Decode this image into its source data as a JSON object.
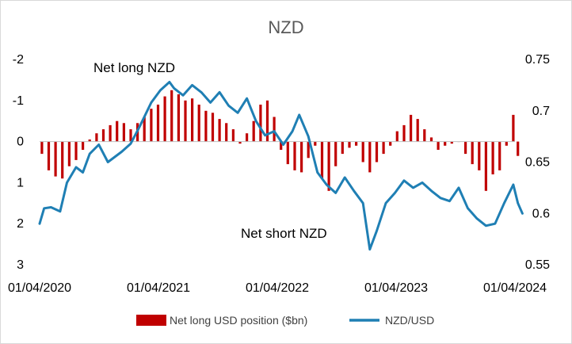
{
  "chart_data": {
    "type": "bar+line",
    "title": "NZD",
    "x_range": [
      "2020-01-04",
      "2024-01-04"
    ],
    "x_ticks": [
      "01/04/2020",
      "01/04/2021",
      "01/04/2022",
      "01/04/2023",
      "01/04/2024"
    ],
    "y_left": {
      "range": [
        3,
        -2
      ],
      "reversed": true,
      "ticks": [
        -2,
        -1,
        0,
        1,
        2,
        3
      ],
      "tick_labels": [
        "-2",
        "-1",
        "0",
        "1",
        "2",
        "3"
      ]
    },
    "y_right": {
      "range": [
        0.55,
        0.75
      ],
      "ticks": [
        0.55,
        0.6,
        0.65,
        0.7,
        0.75
      ],
      "tick_labels": [
        "0.55",
        "0.6",
        "0.65",
        "0.7",
        "0.75"
      ]
    },
    "annotations": [
      {
        "text": "Net long NZD"
      },
      {
        "text": "Net short NZD"
      }
    ],
    "legend_position": "bottom",
    "series": [
      {
        "name": "Net long USD position ($bn)",
        "type": "bar",
        "axis": "left",
        "color": "#c00000",
        "points": [
          [
            "2020-01-11",
            0.3
          ],
          [
            "2020-02-01",
            0.7
          ],
          [
            "2020-02-22",
            0.85
          ],
          [
            "2020-03-14",
            0.9
          ],
          [
            "2020-04-04",
            0.6
          ],
          [
            "2020-04-25",
            0.45
          ],
          [
            "2020-05-16",
            0.2
          ],
          [
            "2020-06-06",
            -0.05
          ],
          [
            "2020-06-27",
            -0.2
          ],
          [
            "2020-07-18",
            -0.3
          ],
          [
            "2020-08-08",
            -0.4
          ],
          [
            "2020-08-29",
            -0.5
          ],
          [
            "2020-09-19",
            -0.45
          ],
          [
            "2020-10-10",
            -0.3
          ],
          [
            "2020-10-31",
            -0.45
          ],
          [
            "2020-11-21",
            -0.6
          ],
          [
            "2020-12-12",
            -0.8
          ],
          [
            "2021-01-02",
            -0.9
          ],
          [
            "2021-01-23",
            -1.1
          ],
          [
            "2021-02-13",
            -1.25
          ],
          [
            "2021-03-06",
            -1.15
          ],
          [
            "2021-03-27",
            -1.0
          ],
          [
            "2021-04-17",
            -1.05
          ],
          [
            "2021-05-08",
            -0.9
          ],
          [
            "2021-05-29",
            -0.75
          ],
          [
            "2021-06-19",
            -0.7
          ],
          [
            "2021-07-10",
            -0.55
          ],
          [
            "2021-07-31",
            -0.45
          ],
          [
            "2021-08-21",
            -0.3
          ],
          [
            "2021-09-11",
            0.05
          ],
          [
            "2021-10-02",
            -0.2
          ],
          [
            "2021-10-23",
            -0.5
          ],
          [
            "2021-11-13",
            -0.9
          ],
          [
            "2021-12-04",
            -1.0
          ],
          [
            "2021-12-25",
            -0.6
          ],
          [
            "2022-01-15",
            0.2
          ],
          [
            "2022-02-05",
            0.55
          ],
          [
            "2022-02-26",
            0.7
          ],
          [
            "2022-03-19",
            0.75
          ],
          [
            "2022-04-09",
            0.4
          ],
          [
            "2022-04-30",
            0.1
          ],
          [
            "2022-05-21",
            0.9
          ],
          [
            "2022-06-11",
            1.2
          ],
          [
            "2022-07-02",
            0.6
          ],
          [
            "2022-07-23",
            0.3
          ],
          [
            "2022-08-13",
            0.15
          ],
          [
            "2022-09-03",
            0.1
          ],
          [
            "2022-09-24",
            0.5
          ],
          [
            "2022-10-15",
            0.75
          ],
          [
            "2022-11-05",
            0.5
          ],
          [
            "2022-11-26",
            0.3
          ],
          [
            "2022-12-17",
            0.1
          ],
          [
            "2023-01-07",
            -0.25
          ],
          [
            "2023-01-28",
            -0.4
          ],
          [
            "2023-02-18",
            -0.65
          ],
          [
            "2023-03-11",
            -0.55
          ],
          [
            "2023-04-01",
            -0.3
          ],
          [
            "2023-04-22",
            -0.1
          ],
          [
            "2023-05-13",
            0.2
          ],
          [
            "2023-06-03",
            0.1
          ],
          [
            "2023-06-24",
            0.05
          ],
          [
            "2023-07-15",
            0.0
          ],
          [
            "2023-08-05",
            0.3
          ],
          [
            "2023-08-26",
            0.55
          ],
          [
            "2023-09-16",
            0.7
          ],
          [
            "2023-10-07",
            1.2
          ],
          [
            "2023-10-28",
            0.8
          ],
          [
            "2023-11-18",
            0.7
          ],
          [
            "2023-12-09",
            0.1
          ],
          [
            "2023-12-30",
            -0.65
          ],
          [
            "2024-01-13",
            0.35
          ]
        ]
      },
      {
        "name": "NZD/USD",
        "type": "line",
        "axis": "right",
        "color": "#1f7fb4",
        "points": [
          [
            "2020-01-04",
            0.59
          ],
          [
            "2020-01-18",
            0.605
          ],
          [
            "2020-02-08",
            0.606
          ],
          [
            "2020-03-07",
            0.602
          ],
          [
            "2020-03-28",
            0.63
          ],
          [
            "2020-04-25",
            0.645
          ],
          [
            "2020-05-16",
            0.64
          ],
          [
            "2020-06-06",
            0.658
          ],
          [
            "2020-07-04",
            0.667
          ],
          [
            "2020-08-01",
            0.65
          ],
          [
            "2020-09-12",
            0.66
          ],
          [
            "2020-10-10",
            0.668
          ],
          [
            "2020-11-07",
            0.685
          ],
          [
            "2020-12-12",
            0.708
          ],
          [
            "2021-01-09",
            0.72
          ],
          [
            "2021-02-06",
            0.728
          ],
          [
            "2021-02-20",
            0.722
          ],
          [
            "2021-03-20",
            0.715
          ],
          [
            "2021-04-17",
            0.725
          ],
          [
            "2021-05-15",
            0.718
          ],
          [
            "2021-06-12",
            0.708
          ],
          [
            "2021-07-10",
            0.718
          ],
          [
            "2021-08-07",
            0.705
          ],
          [
            "2021-09-04",
            0.698
          ],
          [
            "2021-10-02",
            0.712
          ],
          [
            "2021-10-30",
            0.69
          ],
          [
            "2021-11-27",
            0.676
          ],
          [
            "2021-12-25",
            0.68
          ],
          [
            "2022-01-22",
            0.667
          ],
          [
            "2022-02-19",
            0.68
          ],
          [
            "2022-03-12",
            0.696
          ],
          [
            "2022-04-09",
            0.675
          ],
          [
            "2022-05-07",
            0.64
          ],
          [
            "2022-06-04",
            0.628
          ],
          [
            "2022-07-02",
            0.62
          ],
          [
            "2022-07-30",
            0.635
          ],
          [
            "2022-08-27",
            0.622
          ],
          [
            "2022-09-24",
            0.61
          ],
          [
            "2022-10-15",
            0.565
          ],
          [
            "2022-11-05",
            0.583
          ],
          [
            "2022-12-03",
            0.61
          ],
          [
            "2022-12-31",
            0.62
          ],
          [
            "2023-01-28",
            0.632
          ],
          [
            "2023-02-25",
            0.625
          ],
          [
            "2023-03-25",
            0.63
          ],
          [
            "2023-04-22",
            0.622
          ],
          [
            "2023-05-20",
            0.615
          ],
          [
            "2023-06-17",
            0.612
          ],
          [
            "2023-07-15",
            0.625
          ],
          [
            "2023-08-12",
            0.605
          ],
          [
            "2023-09-09",
            0.595
          ],
          [
            "2023-10-07",
            0.588
          ],
          [
            "2023-11-04",
            0.59
          ],
          [
            "2023-12-02",
            0.61
          ],
          [
            "2023-12-30",
            0.628
          ],
          [
            "2024-01-13",
            0.61
          ],
          [
            "2024-01-27",
            0.6
          ]
        ]
      }
    ]
  }
}
